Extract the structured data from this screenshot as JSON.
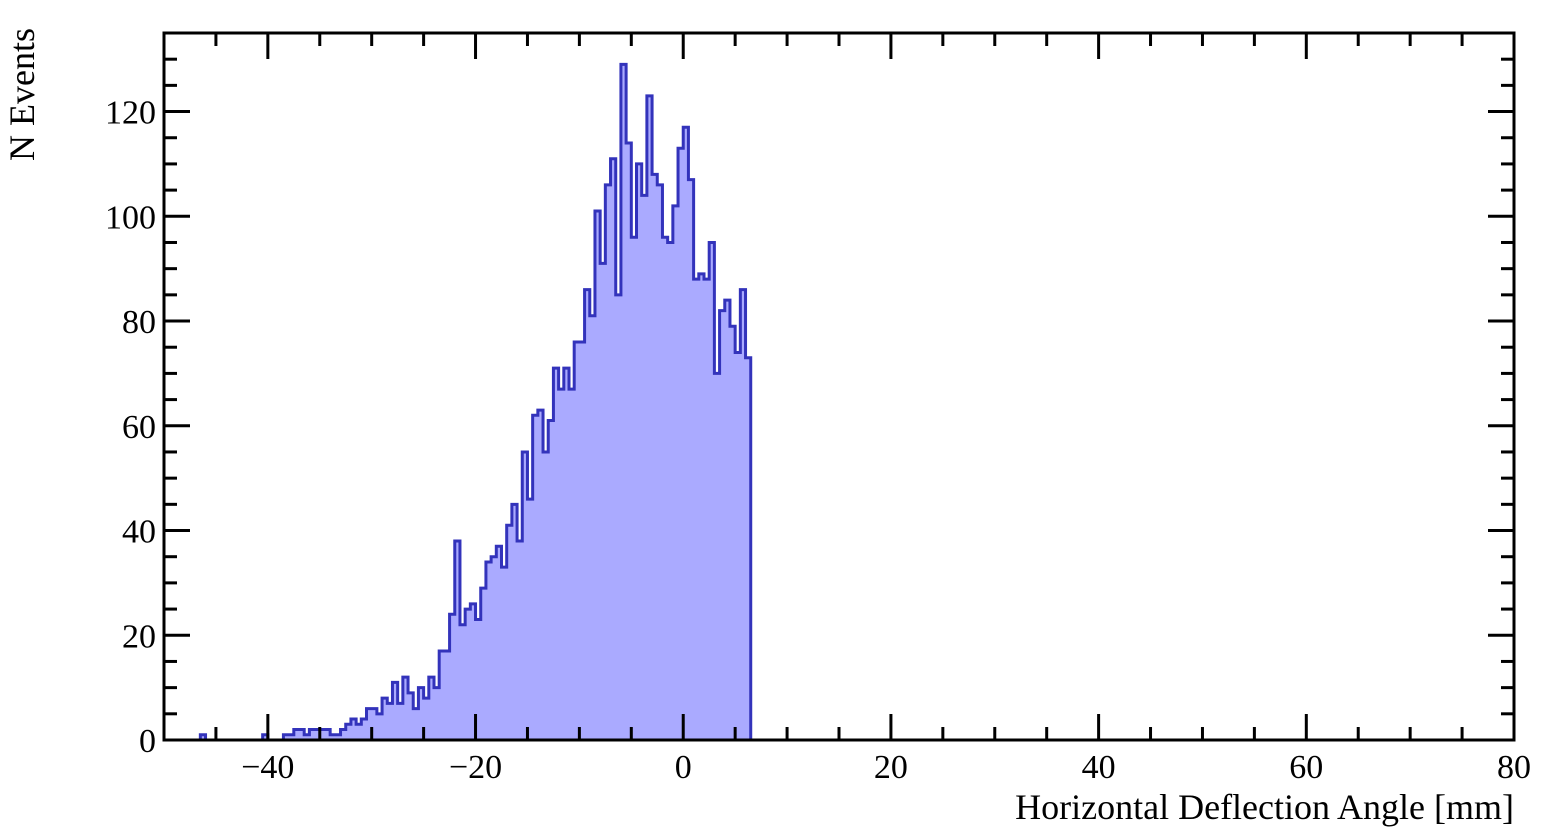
{
  "chart_data": {
    "type": "bar",
    "style": "step-histogram",
    "xlabel": "Horizontal Deflection Angle [mm]",
    "ylabel": "N Events",
    "xlim": [
      -50,
      80
    ],
    "ylim": [
      0,
      135
    ],
    "bin_width": 0.5,
    "x_ticks": [
      -40,
      -20,
      0,
      20,
      40,
      60,
      80
    ],
    "x_tick_labels": [
      "−40",
      "−20",
      "0",
      "20",
      "40",
      "60",
      "80"
    ],
    "y_ticks": [
      0,
      20,
      40,
      60,
      80,
      100,
      120
    ],
    "y_tick_labels": [
      "0",
      "20",
      "40",
      "60",
      "80",
      "100",
      "120"
    ],
    "colors": {
      "fill": "#aaaaff",
      "line": "#3333bb",
      "frame": "#000000"
    },
    "series": [
      {
        "bins": [
          [
            -46.5,
            1
          ],
          [
            -40.5,
            1
          ],
          [
            -38.5,
            1
          ],
          [
            -38,
            1
          ],
          [
            -37.5,
            2
          ],
          [
            -37,
            2
          ],
          [
            -36.5,
            1
          ],
          [
            -36,
            2
          ],
          [
            -35.5,
            2
          ],
          [
            -35,
            2
          ],
          [
            -34.5,
            2
          ],
          [
            -34,
            1
          ],
          [
            -33.5,
            1
          ],
          [
            -33,
            2
          ],
          [
            -32.5,
            3
          ],
          [
            -32,
            4
          ],
          [
            -31.5,
            3
          ],
          [
            -31,
            4
          ],
          [
            -30.5,
            6
          ],
          [
            -30,
            6
          ],
          [
            -29.5,
            5
          ],
          [
            -29,
            8
          ],
          [
            -28.5,
            7
          ],
          [
            -28,
            11
          ],
          [
            -27.5,
            7
          ],
          [
            -27,
            12
          ],
          [
            -26.5,
            9
          ],
          [
            -26,
            6
          ],
          [
            -25.5,
            10
          ],
          [
            -25,
            8
          ],
          [
            -24.5,
            12
          ],
          [
            -24,
            10
          ],
          [
            -23.5,
            17
          ],
          [
            -23,
            17
          ],
          [
            -22.5,
            24
          ],
          [
            -22,
            38
          ],
          [
            -21.5,
            22
          ],
          [
            -21,
            25
          ],
          [
            -20.5,
            26
          ],
          [
            -20,
            23
          ],
          [
            -19.5,
            29
          ],
          [
            -19,
            34
          ],
          [
            -18.5,
            35
          ],
          [
            -18,
            37
          ],
          [
            -17.5,
            33
          ],
          [
            -17,
            41
          ],
          [
            -16.5,
            45
          ],
          [
            -16,
            38
          ],
          [
            -15.5,
            55
          ],
          [
            -15,
            46
          ],
          [
            -14.5,
            62
          ],
          [
            -14,
            63
          ],
          [
            -13.5,
            55
          ],
          [
            -13,
            61
          ],
          [
            -12.5,
            71
          ],
          [
            -12,
            67
          ],
          [
            -11.5,
            71
          ],
          [
            -11,
            67
          ],
          [
            -10.5,
            76
          ],
          [
            -10,
            76
          ],
          [
            -9.5,
            86
          ],
          [
            -9,
            81
          ],
          [
            -8.5,
            101
          ],
          [
            -8,
            91
          ],
          [
            -7.5,
            106
          ],
          [
            -7,
            111
          ],
          [
            -6.5,
            85
          ],
          [
            -6,
            129
          ],
          [
            -5.5,
            114
          ],
          [
            -5,
            96
          ],
          [
            -4.5,
            110
          ],
          [
            -4,
            104
          ],
          [
            -3.5,
            123
          ],
          [
            -3,
            108
          ],
          [
            -2.5,
            106
          ],
          [
            -2,
            96
          ],
          [
            -1.5,
            95
          ],
          [
            -1,
            102
          ],
          [
            -0.5,
            113
          ],
          [
            0,
            117
          ],
          [
            0.5,
            107
          ],
          [
            1,
            88
          ],
          [
            1.5,
            89
          ],
          [
            2,
            88
          ],
          [
            2.5,
            95
          ],
          [
            3,
            70
          ],
          [
            3.5,
            82
          ],
          [
            4,
            84
          ],
          [
            4.5,
            79
          ],
          [
            5,
            74
          ],
          [
            5.5,
            86
          ],
          [
            6,
            73
          ]
        ]
      }
    ]
  }
}
